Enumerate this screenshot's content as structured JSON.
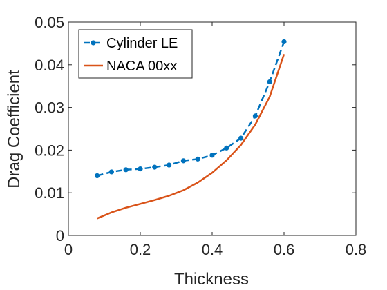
{
  "chart_data": {
    "type": "line",
    "xlabel": "Thickness",
    "ylabel": "Drag Coefficient",
    "xlim": [
      0,
      0.8
    ],
    "ylim": [
      0,
      0.05
    ],
    "xticks": [
      0,
      0.2,
      0.4,
      0.6,
      0.8
    ],
    "yticks": [
      0,
      0.01,
      0.02,
      0.03,
      0.04,
      0.05
    ],
    "xtick_labels": [
      "0",
      "0.2",
      "0.4",
      "0.6",
      "0.8"
    ],
    "ytick_labels": [
      "0",
      "0.01",
      "0.02",
      "0.03",
      "0.04",
      "0.05"
    ],
    "grid": false,
    "legend_position": "top-left",
    "series": [
      {
        "name": "Cylinder LE",
        "color": "#0072BD",
        "style": "dashed-with-markers",
        "x": [
          0.08,
          0.12,
          0.16,
          0.2,
          0.24,
          0.28,
          0.32,
          0.36,
          0.4,
          0.44,
          0.48,
          0.52,
          0.56,
          0.6
        ],
        "y": [
          0.014,
          0.0149,
          0.0154,
          0.0156,
          0.016,
          0.0165,
          0.0175,
          0.0179,
          0.0188,
          0.0205,
          0.0228,
          0.028,
          0.036,
          0.0454
        ]
      },
      {
        "name": "NACA 00xx",
        "color": "#D95319",
        "style": "solid",
        "x": [
          0.08,
          0.12,
          0.16,
          0.2,
          0.24,
          0.28,
          0.32,
          0.36,
          0.4,
          0.44,
          0.48,
          0.52,
          0.56,
          0.6
        ],
        "y": [
          0.004,
          0.0054,
          0.0065,
          0.0074,
          0.0083,
          0.0093,
          0.0106,
          0.0124,
          0.0147,
          0.0176,
          0.0212,
          0.026,
          0.0325,
          0.0425
        ]
      }
    ]
  }
}
